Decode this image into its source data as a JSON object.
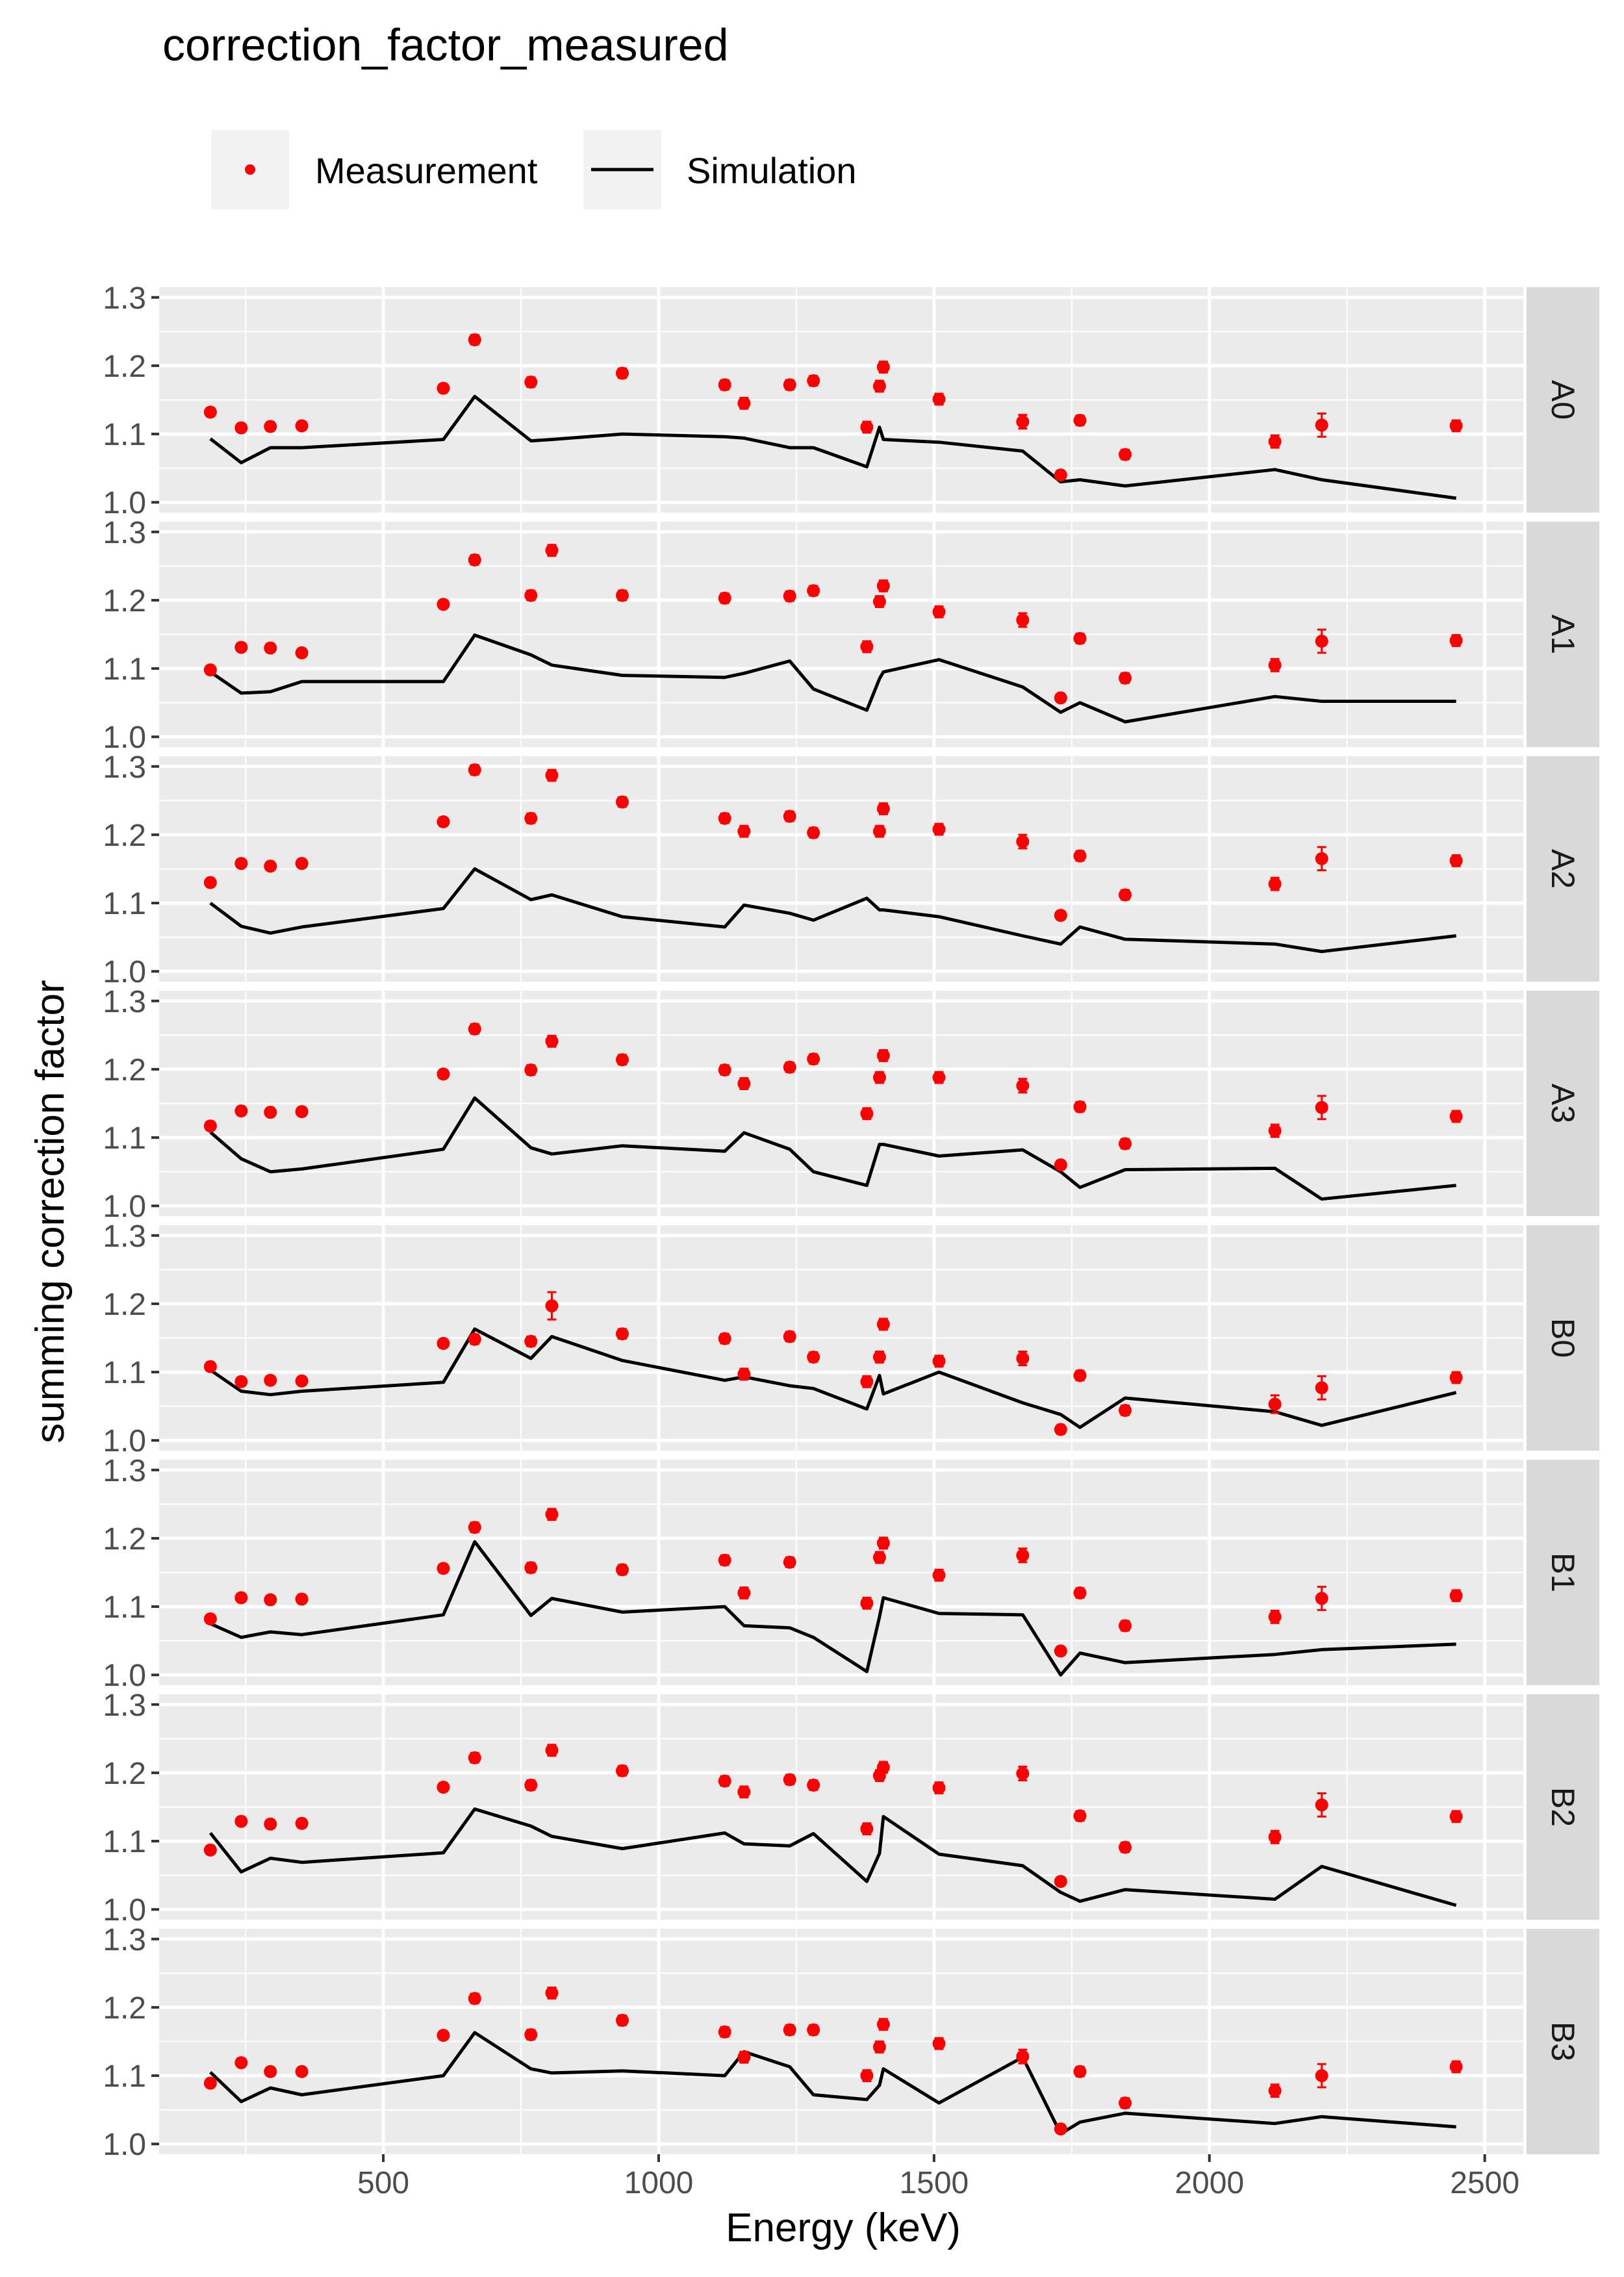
{
  "chart_data": {
    "type": "scatter",
    "title": "correction_factor_measured",
    "xlabel": "Energy (keV)",
    "ylabel": "summing correction factor",
    "xlim": [
      93,
      2570
    ],
    "ylim": [
      0.985,
      1.315
    ],
    "x_ticks": [
      500,
      1000,
      1500,
      2000,
      2500
    ],
    "y_ticks": [
      1.0,
      1.1,
      1.2,
      1.3
    ],
    "grid": true,
    "legend_position": "top-left",
    "legend": [
      {
        "label": "Measurement",
        "kind": "point",
        "color": "#ff0000"
      },
      {
        "label": "Simulation",
        "kind": "line",
        "color": "#000000"
      }
    ],
    "colors": {
      "measurement": "#ff0000",
      "simulation": "#000000",
      "panel_bg": "#ebebeb",
      "strip_bg": "#d9d9d9"
    },
    "x": [
      186,
      242,
      295,
      352,
      609,
      666,
      768,
      806,
      934,
      1120,
      1155,
      1238,
      1281,
      1378,
      1401,
      1408,
      1509,
      1661,
      1730,
      1765,
      1847,
      2119,
      2204,
      2448
    ],
    "sim_x": [
      186,
      242,
      295,
      352,
      609,
      666,
      768,
      806,
      934,
      1120,
      1155,
      1238,
      1281,
      1378,
      1401,
      1408,
      1509,
      1661,
      1730,
      1765,
      1847,
      2119,
      2204,
      2448
    ],
    "panels": [
      {
        "label": "A0",
        "measurement": [
          1.132,
          1.109,
          1.111,
          1.112,
          1.167,
          1.238,
          1.176,
          null,
          1.189,
          1.172,
          1.145,
          1.172,
          1.178,
          1.11,
          1.17,
          1.198,
          1.151,
          1.118,
          1.04,
          1.12,
          1.07,
          1.089,
          1.113,
          1.112
        ],
        "error": [
          0.006,
          0.006,
          0.006,
          0.006,
          0.006,
          0.007,
          0.007,
          null,
          0.007,
          0.007,
          0.008,
          0.007,
          0.007,
          0.008,
          0.008,
          0.008,
          0.008,
          0.01,
          0.006,
          0.007,
          0.007,
          0.009,
          0.017,
          0.008
        ],
        "simulation": [
          1.093,
          1.058,
          1.08,
          1.08,
          1.092,
          1.155,
          1.09,
          1.092,
          1.1,
          1.096,
          1.094,
          1.08,
          1.08,
          1.052,
          1.11,
          1.092,
          1.088,
          1.075,
          1.03,
          1.033,
          1.024,
          1.048,
          1.033,
          1.006
        ]
      },
      {
        "label": "A1",
        "measurement": [
          1.098,
          1.131,
          1.13,
          1.123,
          1.194,
          1.259,
          1.207,
          1.273,
          1.207,
          1.203,
          null,
          1.206,
          1.214,
          1.132,
          1.198,
          1.221,
          1.183,
          1.171,
          1.057,
          1.144,
          1.086,
          1.105,
          1.14,
          1.141
        ],
        "error": [
          0.006,
          0.006,
          0.006,
          0.006,
          0.006,
          0.007,
          0.007,
          0.008,
          0.007,
          0.007,
          null,
          0.007,
          0.007,
          0.008,
          0.008,
          0.008,
          0.008,
          0.01,
          0.006,
          0.007,
          0.007,
          0.009,
          0.017,
          0.008
        ],
        "simulation": [
          1.095,
          1.064,
          1.066,
          1.081,
          1.081,
          1.149,
          1.12,
          1.105,
          1.09,
          1.087,
          1.093,
          1.111,
          1.07,
          1.039,
          1.085,
          1.095,
          1.113,
          1.073,
          1.036,
          1.05,
          1.022,
          1.059,
          1.052,
          1.052
        ]
      },
      {
        "label": "A2",
        "measurement": [
          1.13,
          1.158,
          1.154,
          1.158,
          1.219,
          1.295,
          1.224,
          1.287,
          1.248,
          1.224,
          1.205,
          1.227,
          1.203,
          null,
          1.205,
          1.238,
          1.208,
          1.19,
          1.082,
          1.169,
          1.112,
          1.128,
          1.165,
          1.162
        ],
        "error": [
          0.006,
          0.006,
          0.006,
          0.006,
          0.006,
          0.007,
          0.007,
          0.008,
          0.007,
          0.007,
          0.008,
          0.007,
          0.007,
          null,
          0.008,
          0.008,
          0.008,
          0.01,
          0.006,
          0.007,
          0.007,
          0.009,
          0.017,
          0.008
        ],
        "simulation": [
          1.1,
          1.066,
          1.056,
          1.065,
          1.092,
          1.15,
          1.105,
          1.112,
          1.08,
          1.065,
          1.097,
          1.085,
          1.075,
          1.107,
          1.09,
          1.09,
          1.08,
          1.052,
          1.04,
          1.065,
          1.047,
          1.04,
          1.029,
          1.052
        ]
      },
      {
        "label": "A3",
        "measurement": [
          1.117,
          1.139,
          1.137,
          1.138,
          1.193,
          1.259,
          1.199,
          1.241,
          1.214,
          1.199,
          1.179,
          1.203,
          1.215,
          1.135,
          1.188,
          1.22,
          1.188,
          1.176,
          1.06,
          1.145,
          1.091,
          1.11,
          1.144,
          1.131
        ],
        "error": [
          0.006,
          0.006,
          0.006,
          0.006,
          0.006,
          0.007,
          0.007,
          0.008,
          0.007,
          0.007,
          0.008,
          0.007,
          0.007,
          0.008,
          0.008,
          0.008,
          0.008,
          0.01,
          0.006,
          0.007,
          0.007,
          0.009,
          0.017,
          0.008
        ],
        "simulation": [
          1.108,
          1.069,
          1.05,
          1.054,
          1.083,
          1.158,
          1.085,
          1.076,
          1.088,
          1.08,
          1.107,
          1.083,
          1.05,
          1.03,
          1.09,
          1.09,
          1.073,
          1.082,
          1.05,
          1.027,
          1.053,
          1.055,
          1.01,
          1.03
        ]
      },
      {
        "label": "B0",
        "measurement": [
          1.108,
          1.086,
          1.088,
          1.087,
          1.142,
          1.148,
          1.145,
          1.197,
          1.156,
          1.149,
          1.097,
          1.152,
          1.122,
          1.086,
          1.122,
          1.17,
          1.116,
          1.12,
          1.016,
          1.095,
          1.044,
          1.053,
          1.077,
          1.092
        ],
        "error": [
          0.006,
          0.006,
          0.006,
          0.006,
          0.006,
          0.007,
          0.007,
          0.02,
          0.007,
          0.007,
          0.008,
          0.007,
          0.007,
          0.008,
          0.008,
          0.008,
          0.008,
          0.01,
          0.006,
          0.007,
          0.007,
          0.013,
          0.017,
          0.008
        ],
        "simulation": [
          1.103,
          1.072,
          1.067,
          1.072,
          1.085,
          1.163,
          1.12,
          1.152,
          1.117,
          1.088,
          1.093,
          1.08,
          1.076,
          1.046,
          1.095,
          1.068,
          1.1,
          1.055,
          1.038,
          1.019,
          1.062,
          1.042,
          1.022,
          1.07
        ]
      },
      {
        "label": "B1",
        "measurement": [
          1.082,
          1.113,
          1.11,
          1.111,
          1.156,
          1.216,
          1.157,
          1.235,
          1.154,
          1.168,
          1.12,
          1.165,
          null,
          1.105,
          1.172,
          1.193,
          1.146,
          1.175,
          1.035,
          1.12,
          1.072,
          1.085,
          1.112,
          1.116
        ],
        "error": [
          0.006,
          0.006,
          0.006,
          0.006,
          0.006,
          0.007,
          0.007,
          0.008,
          0.007,
          0.007,
          0.008,
          0.007,
          null,
          0.008,
          0.008,
          0.008,
          0.008,
          0.01,
          0.006,
          0.007,
          0.007,
          0.009,
          0.017,
          0.008
        ],
        "simulation": [
          1.075,
          1.055,
          1.063,
          1.059,
          1.088,
          1.195,
          1.087,
          1.112,
          1.092,
          1.1,
          1.072,
          1.069,
          1.055,
          1.005,
          1.085,
          1.113,
          1.09,
          1.088,
          1.0,
          1.032,
          1.018,
          1.03,
          1.037,
          1.045
        ]
      },
      {
        "label": "B2",
        "measurement": [
          1.087,
          1.129,
          1.125,
          1.126,
          1.179,
          1.222,
          1.182,
          1.233,
          1.203,
          1.188,
          1.172,
          1.19,
          1.182,
          1.118,
          1.196,
          1.208,
          1.178,
          1.199,
          1.041,
          1.137,
          1.091,
          1.106,
          1.153,
          1.136
        ],
        "error": [
          0.006,
          0.006,
          0.006,
          0.006,
          0.006,
          0.007,
          0.007,
          0.008,
          0.007,
          0.007,
          0.008,
          0.007,
          0.007,
          0.008,
          0.008,
          0.008,
          0.008,
          0.01,
          0.006,
          0.007,
          0.007,
          0.009,
          0.017,
          0.008
        ],
        "simulation": [
          1.112,
          1.055,
          1.075,
          1.069,
          1.083,
          1.147,
          1.122,
          1.107,
          1.089,
          1.112,
          1.096,
          1.093,
          1.111,
          1.041,
          1.082,
          1.136,
          1.081,
          1.064,
          1.025,
          1.012,
          1.029,
          1.015,
          1.063,
          1.006
        ]
      },
      {
        "label": "B3",
        "measurement": [
          1.089,
          1.119,
          1.106,
          1.106,
          1.159,
          1.213,
          1.16,
          1.221,
          1.181,
          1.164,
          1.127,
          1.167,
          1.167,
          1.1,
          1.142,
          1.175,
          1.147,
          1.128,
          1.022,
          1.106,
          1.06,
          1.078,
          1.1,
          1.113
        ],
        "error": [
          0.006,
          0.006,
          0.006,
          0.006,
          0.006,
          0.007,
          0.007,
          0.008,
          0.007,
          0.007,
          0.008,
          0.007,
          0.007,
          0.008,
          0.008,
          0.008,
          0.008,
          0.01,
          0.006,
          0.007,
          0.007,
          0.009,
          0.017,
          0.008
        ],
        "simulation": [
          1.105,
          1.062,
          1.082,
          1.072,
          1.1,
          1.163,
          1.11,
          1.104,
          1.107,
          1.1,
          1.135,
          1.113,
          1.072,
          1.065,
          1.086,
          1.11,
          1.06,
          1.127,
          1.015,
          1.032,
          1.045,
          1.03,
          1.04,
          1.025
        ]
      }
    ]
  }
}
